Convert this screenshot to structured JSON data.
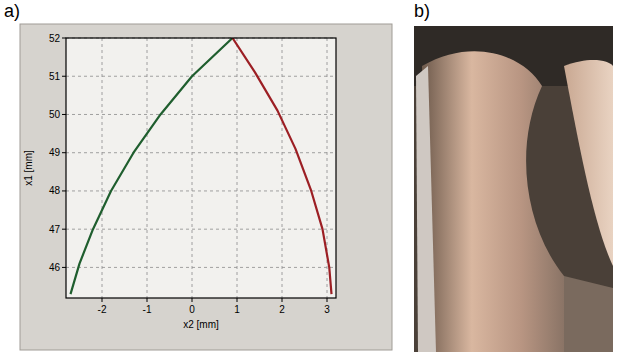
{
  "chart_data": {
    "type": "line",
    "x_label": "x2 [mm]",
    "y_label": "x1 [mm]",
    "xlim": [
      -2.8,
      3.2
    ],
    "xticks": [
      -2,
      -1,
      0,
      1,
      2,
      3
    ],
    "ylim": [
      45.2,
      52
    ],
    "yticks": [
      46,
      47,
      48,
      49,
      50,
      51,
      52
    ],
    "grid": true,
    "series": [
      {
        "color": "#1f5e2e",
        "x": [
          -2.7,
          -2.5,
          -2.2,
          -1.8,
          -1.3,
          -0.7,
          0,
          0.9
        ],
        "values": [
          45.3,
          46.1,
          47.0,
          48.0,
          49.0,
          50.0,
          51.0,
          52.0
        ]
      },
      {
        "color": "#9c1f24",
        "x": [
          0.9,
          1.4,
          1.9,
          2.3,
          2.65,
          2.9,
          3.05,
          3.1
        ],
        "values": [
          52.0,
          51.1,
          50.1,
          49.1,
          48.0,
          47.0,
          46.0,
          45.3
        ]
      }
    ]
  },
  "panel_labels": [
    "a)",
    "b)"
  ]
}
